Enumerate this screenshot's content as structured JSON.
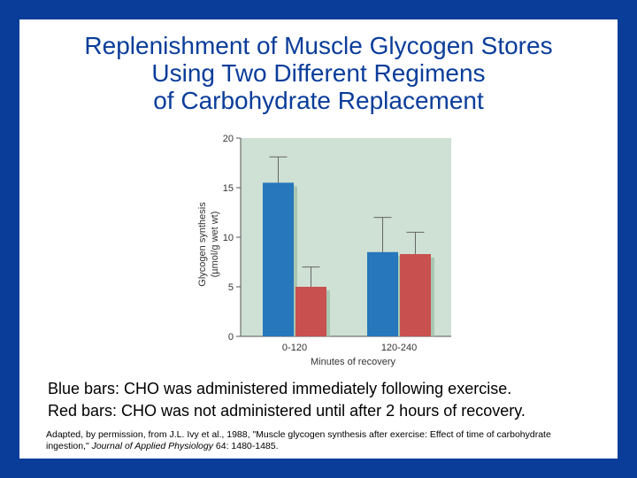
{
  "slide": {
    "title_lines": [
      "Replenishment of Muscle Glycogen Stores",
      "Using Two Different Regimens",
      "of Carbohydrate Replacement"
    ],
    "captions": [
      "Blue bars: CHO was administered immediately following exercise.",
      "Red bars: CHO was not administered until after 2 hours of recovery."
    ],
    "citation": {
      "before": "Adapted, by permission, from J.L. Ivy et al., 1988, \"Muscle glycogen synthesis after exercise: Effect of time of carbohydrate ingestion,\" ",
      "journal": "Journal of Applied Physiology",
      "after": " 64: 1480-1485."
    }
  },
  "colors": {
    "background": "#0a3d9a",
    "title": "#0a3d9a",
    "plot_background": "#cfe0d4",
    "blue_bar": "#2677bb",
    "red_bar": "#c8504f"
  },
  "chart_data": {
    "type": "bar",
    "title": "",
    "xlabel": "Minutes of recovery",
    "ylabel": "Glycogen synthesis",
    "ylabel_unit": "(µmol/g wet wt)",
    "categories": [
      "0-120",
      "120-240"
    ],
    "ylim": [
      0,
      20
    ],
    "yticks": [
      0,
      5,
      10,
      15,
      20
    ],
    "series": [
      {
        "color": "#2677bb",
        "values": [
          15.5,
          8.5
        ],
        "error": [
          2.6,
          3.5
        ]
      },
      {
        "color": "#c8504f",
        "values": [
          5.0,
          8.3
        ],
        "error": [
          2.0,
          2.2
        ]
      }
    ],
    "grid": false,
    "legend": "none"
  }
}
